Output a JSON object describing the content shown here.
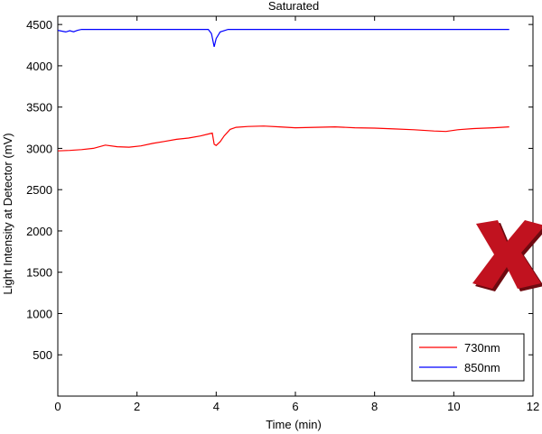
{
  "chart_data": {
    "type": "line",
    "title": "Saturated",
    "xlabel": "Time (min)",
    "ylabel": "Light Intensity at Detector (mV)",
    "xlim": [
      0,
      12
    ],
    "ylim": [
      0,
      4600
    ],
    "xticks": [
      0,
      2,
      4,
      6,
      8,
      10,
      12
    ],
    "yticks": [
      500,
      1000,
      1500,
      2000,
      2500,
      3000,
      3500,
      4000,
      4500
    ],
    "grid": false,
    "legend_position": "bottom-right",
    "series": [
      {
        "name": "730nm",
        "color": "#ff0000",
        "x": [
          0,
          0.3,
          0.6,
          0.9,
          1.2,
          1.5,
          1.8,
          2.1,
          2.4,
          2.7,
          3.0,
          3.3,
          3.6,
          3.85,
          3.9,
          3.95,
          4.0,
          4.1,
          4.2,
          4.35,
          4.5,
          4.8,
          5.2,
          5.6,
          6.0,
          6.5,
          7.0,
          7.5,
          8.0,
          8.5,
          9.0,
          9.5,
          9.8,
          10.1,
          10.5,
          11.0,
          11.4
        ],
        "y": [
          2970,
          2975,
          2985,
          3000,
          3040,
          3020,
          3015,
          3030,
          3060,
          3085,
          3110,
          3125,
          3150,
          3180,
          3185,
          3050,
          3035,
          3080,
          3150,
          3230,
          3255,
          3265,
          3270,
          3260,
          3250,
          3255,
          3260,
          3250,
          3245,
          3235,
          3225,
          3210,
          3205,
          3225,
          3240,
          3250,
          3260
        ]
      },
      {
        "name": "850nm",
        "color": "#0000ff",
        "x": [
          0,
          0.2,
          0.3,
          0.4,
          0.5,
          0.6,
          1.0,
          2.0,
          3.0,
          3.8,
          3.88,
          3.92,
          3.95,
          4.0,
          4.1,
          4.3,
          5.0,
          6.0,
          8.0,
          10.0,
          11.4
        ],
        "y": [
          4430,
          4410,
          4425,
          4412,
          4430,
          4440,
          4440,
          4440,
          4440,
          4440,
          4390,
          4300,
          4230,
          4330,
          4410,
          4440,
          4440,
          4440,
          4440,
          4440,
          4440
        ]
      }
    ]
  },
  "watermark": {
    "glyph": "X",
    "color": "#c1121f"
  }
}
